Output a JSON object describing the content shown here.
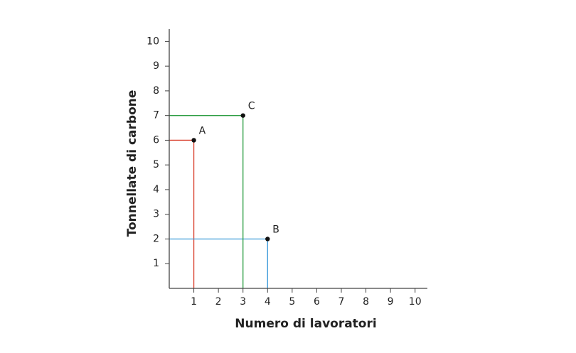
{
  "chart_data": {
    "type": "scatter",
    "xlabel": "Numero di lavoratori",
    "ylabel": "Tonnellate di carbone",
    "xlim": [
      0,
      10.5
    ],
    "ylim": [
      0,
      10.5
    ],
    "xticks": [
      1,
      2,
      3,
      4,
      5,
      6,
      7,
      8,
      9,
      10
    ],
    "yticks": [
      1,
      2,
      3,
      4,
      5,
      6,
      7,
      8,
      9,
      10
    ],
    "series": [
      {
        "name": "A",
        "color": "#d9412e",
        "x": [
          1
        ],
        "values": [
          6
        ]
      },
      {
        "name": "B",
        "color": "#3a9ad9",
        "x": [
          4
        ],
        "values": [
          2
        ]
      },
      {
        "name": "C",
        "color": "#2e9e44",
        "x": [
          3
        ],
        "values": [
          7
        ]
      }
    ]
  }
}
